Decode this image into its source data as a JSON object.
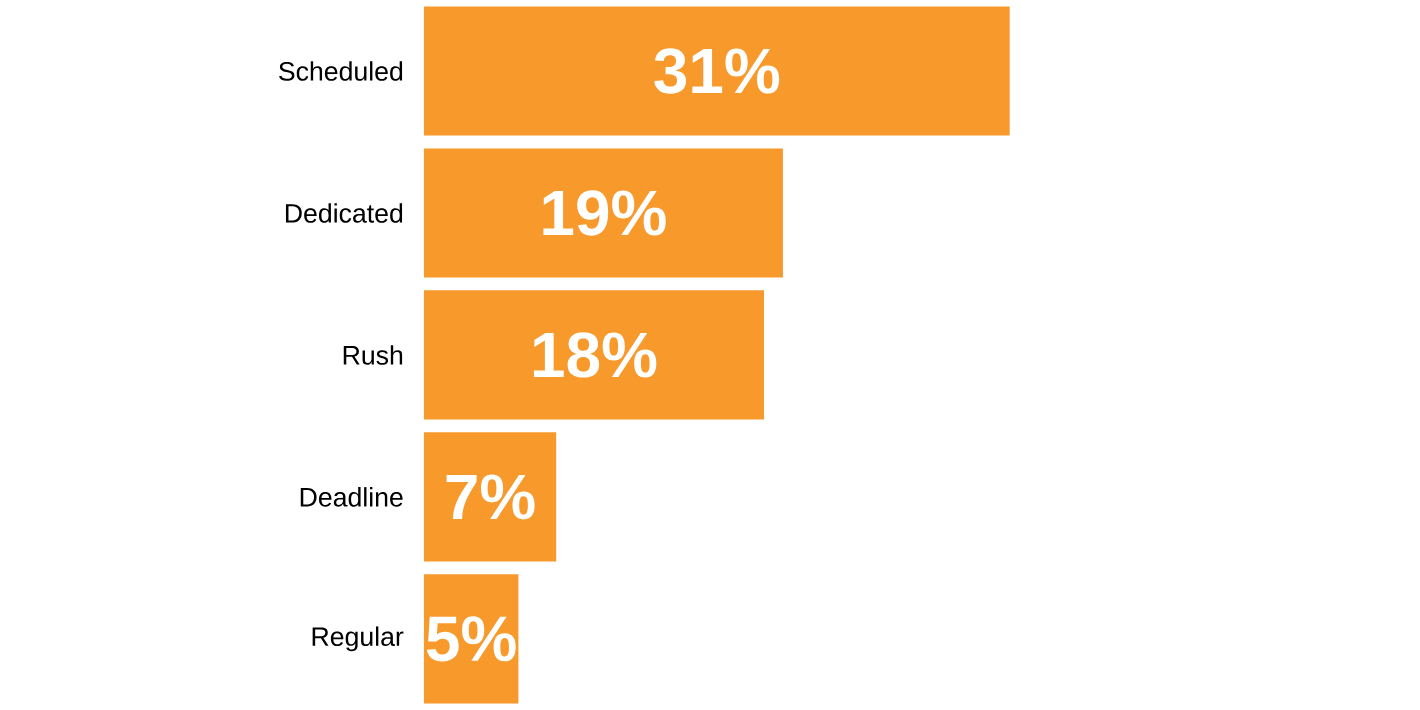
{
  "chart_data": {
    "type": "bar",
    "orientation": "horizontal",
    "categories": [
      "Scheduled",
      "Dedicated",
      "Rush",
      "Deadline",
      "Regular"
    ],
    "values": [
      31,
      19,
      18,
      7,
      5
    ],
    "value_labels": [
      "31%",
      "19%",
      "18%",
      "7%",
      "5%"
    ],
    "color": "#f7992b"
  }
}
